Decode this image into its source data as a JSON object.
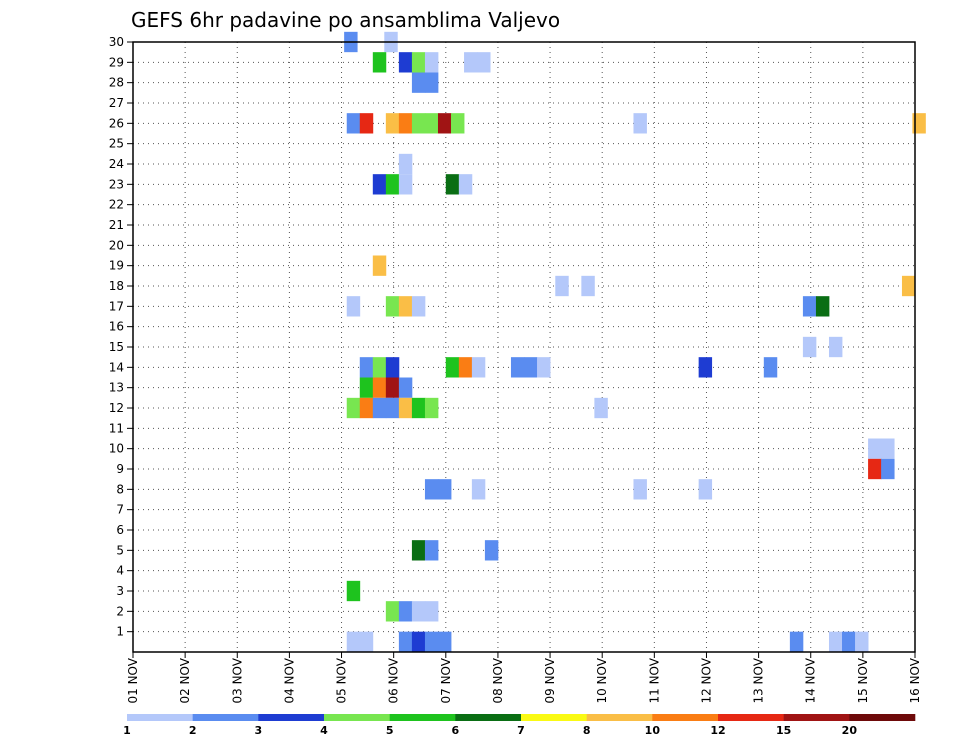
{
  "chart_data": {
    "type": "heatmap",
    "title": "GEFS 6hr padavine po ansamblima Valjevo",
    "xlabel": "",
    "ylabel": "",
    "x_ticks": [
      "01 NOV",
      "02 NOV",
      "03 NOV",
      "04 NOV",
      "05 NOV",
      "06 NOV",
      "07 NOV",
      "08 NOV",
      "09 NOV",
      "10 NOV",
      "11 NOV",
      "12 NOV",
      "13 NOV",
      "14 NOV",
      "15 NOV",
      "16 NOV"
    ],
    "y_ticks": [
      1,
      2,
      3,
      4,
      5,
      6,
      7,
      8,
      9,
      10,
      11,
      12,
      13,
      14,
      15,
      16,
      17,
      18,
      19,
      20,
      21,
      22,
      23,
      24,
      25,
      26,
      27,
      28,
      29,
      30
    ],
    "xlim": [
      0,
      15
    ],
    "ylim": [
      0,
      30
    ],
    "grid": "dotted",
    "legend": {
      "placement": "bottom",
      "boundaries": [
        "1",
        "2",
        "3",
        "4",
        "5",
        "6",
        "7",
        "8",
        "10",
        "12",
        "15",
        "20"
      ],
      "colors": [
        "#b4c8fa",
        "#5a8cf0",
        "#1e3cd2",
        "#78e650",
        "#1ec31e",
        "#0a6e14",
        "#fafa14",
        "#fabe46",
        "#fa7d14",
        "#e62814",
        "#a01414",
        "#6e0a0a"
      ]
    },
    "cells": [
      {
        "x": 4.05,
        "y": 30,
        "c": 1
      },
      {
        "x": 4.82,
        "y": 30,
        "c": 0
      },
      {
        "x": 4.6,
        "y": 29,
        "c": 4
      },
      {
        "x": 5.1,
        "y": 29,
        "c": 2
      },
      {
        "x": 5.35,
        "y": 29,
        "c": 3
      },
      {
        "x": 5.6,
        "y": 29,
        "c": 0
      },
      {
        "x": 6.35,
        "y": 29,
        "c": 0
      },
      {
        "x": 6.6,
        "y": 29,
        "c": 0
      },
      {
        "x": 5.35,
        "y": 28,
        "c": 1
      },
      {
        "x": 5.6,
        "y": 28,
        "c": 1
      },
      {
        "x": 4.1,
        "y": 26,
        "c": 1
      },
      {
        "x": 4.35,
        "y": 26,
        "c": 9
      },
      {
        "x": 4.85,
        "y": 26,
        "c": 7
      },
      {
        "x": 5.1,
        "y": 26,
        "c": 8
      },
      {
        "x": 5.35,
        "y": 26,
        "c": 3
      },
      {
        "x": 5.6,
        "y": 26,
        "c": 3
      },
      {
        "x": 5.85,
        "y": 26,
        "c": 10
      },
      {
        "x": 6.1,
        "y": 26,
        "c": 3
      },
      {
        "x": 9.6,
        "y": 26,
        "c": 0
      },
      {
        "x": 14.95,
        "y": 26,
        "c": 7
      },
      {
        "x": 5.1,
        "y": 24,
        "c": 0
      },
      {
        "x": 4.6,
        "y": 23,
        "c": 2
      },
      {
        "x": 4.85,
        "y": 23,
        "c": 4
      },
      {
        "x": 5.1,
        "y": 23,
        "c": 0
      },
      {
        "x": 6.0,
        "y": 23,
        "c": 5
      },
      {
        "x": 6.25,
        "y": 23,
        "c": 0
      },
      {
        "x": 4.6,
        "y": 19,
        "c": 7
      },
      {
        "x": 8.1,
        "y": 18,
        "c": 0
      },
      {
        "x": 8.6,
        "y": 18,
        "c": 0
      },
      {
        "x": 14.75,
        "y": 18,
        "c": 7
      },
      {
        "x": 4.1,
        "y": 17,
        "c": 0
      },
      {
        "x": 4.85,
        "y": 17,
        "c": 3
      },
      {
        "x": 5.1,
        "y": 17,
        "c": 7
      },
      {
        "x": 5.35,
        "y": 17,
        "c": 0
      },
      {
        "x": 12.85,
        "y": 17,
        "c": 1
      },
      {
        "x": 13.1,
        "y": 17,
        "c": 5
      },
      {
        "x": 12.85,
        "y": 15,
        "c": 0
      },
      {
        "x": 13.35,
        "y": 15,
        "c": 0
      },
      {
        "x": 4.35,
        "y": 14,
        "c": 1
      },
      {
        "x": 4.6,
        "y": 14,
        "c": 3
      },
      {
        "x": 4.85,
        "y": 14,
        "c": 2
      },
      {
        "x": 6.0,
        "y": 14,
        "c": 4
      },
      {
        "x": 6.25,
        "y": 14,
        "c": 8
      },
      {
        "x": 6.5,
        "y": 14,
        "c": 0
      },
      {
        "x": 7.25,
        "y": 14,
        "c": 1
      },
      {
        "x": 7.5,
        "y": 14,
        "c": 1
      },
      {
        "x": 7.75,
        "y": 14,
        "c": 0
      },
      {
        "x": 10.85,
        "y": 14,
        "c": 2
      },
      {
        "x": 12.1,
        "y": 14,
        "c": 1
      },
      {
        "x": 4.35,
        "y": 13,
        "c": 4
      },
      {
        "x": 4.6,
        "y": 13,
        "c": 8
      },
      {
        "x": 4.85,
        "y": 13,
        "c": 10
      },
      {
        "x": 5.1,
        "y": 13,
        "c": 1
      },
      {
        "x": 4.1,
        "y": 12,
        "c": 3
      },
      {
        "x": 4.35,
        "y": 12,
        "c": 8
      },
      {
        "x": 4.6,
        "y": 12,
        "c": 1
      },
      {
        "x": 4.85,
        "y": 12,
        "c": 1
      },
      {
        "x": 5.1,
        "y": 12,
        "c": 7
      },
      {
        "x": 5.35,
        "y": 12,
        "c": 4
      },
      {
        "x": 5.6,
        "y": 12,
        "c": 3
      },
      {
        "x": 8.85,
        "y": 12,
        "c": 0
      },
      {
        "x": 14.1,
        "y": 10,
        "c": 0
      },
      {
        "x": 14.35,
        "y": 10,
        "c": 0
      },
      {
        "x": 14.1,
        "y": 9,
        "c": 9
      },
      {
        "x": 14.35,
        "y": 9,
        "c": 1
      },
      {
        "x": 5.6,
        "y": 8,
        "c": 1
      },
      {
        "x": 5.85,
        "y": 8,
        "c": 1
      },
      {
        "x": 6.5,
        "y": 8,
        "c": 0
      },
      {
        "x": 9.6,
        "y": 8,
        "c": 0
      },
      {
        "x": 10.85,
        "y": 8,
        "c": 0
      },
      {
        "x": 5.35,
        "y": 5,
        "c": 5
      },
      {
        "x": 5.6,
        "y": 5,
        "c": 1
      },
      {
        "x": 6.75,
        "y": 5,
        "c": 1
      },
      {
        "x": 4.1,
        "y": 3,
        "c": 4
      },
      {
        "x": 4.85,
        "y": 2,
        "c": 3
      },
      {
        "x": 5.1,
        "y": 2,
        "c": 1
      },
      {
        "x": 5.35,
        "y": 2,
        "c": 0
      },
      {
        "x": 5.6,
        "y": 2,
        "c": 0
      },
      {
        "x": 4.1,
        "y": 0.5,
        "c": 0
      },
      {
        "x": 4.35,
        "y": 0.5,
        "c": 0
      },
      {
        "x": 5.1,
        "y": 0.5,
        "c": 1
      },
      {
        "x": 5.35,
        "y": 0.5,
        "c": 2
      },
      {
        "x": 5.6,
        "y": 0.5,
        "c": 1
      },
      {
        "x": 5.85,
        "y": 0.5,
        "c": 1
      },
      {
        "x": 12.6,
        "y": 0.5,
        "c": 1
      },
      {
        "x": 13.35,
        "y": 0.5,
        "c": 0
      },
      {
        "x": 13.6,
        "y": 0.5,
        "c": 1
      },
      {
        "x": 13.85,
        "y": 0.5,
        "c": 0
      }
    ]
  }
}
